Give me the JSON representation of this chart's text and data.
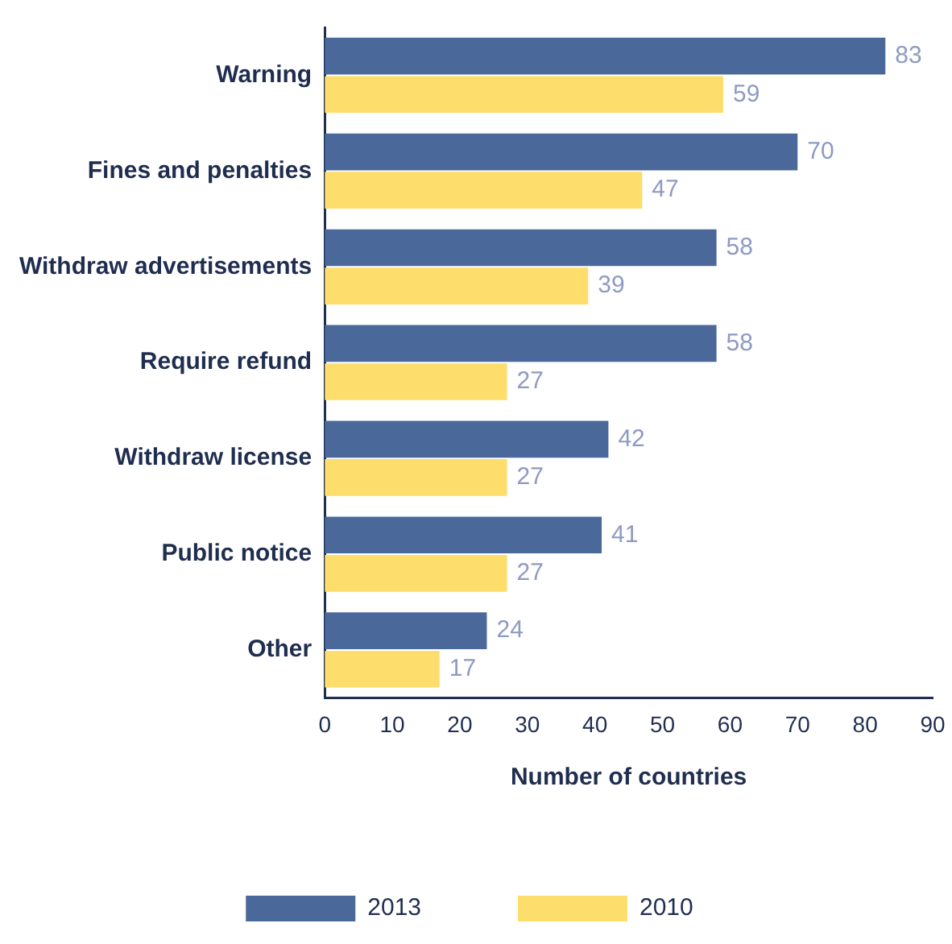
{
  "chart_data": {
    "type": "bar",
    "orientation": "horizontal",
    "xlabel": "Number of countries",
    "categories": [
      "Warning",
      "Fines and penalties",
      "Withdraw advertisements",
      "Require refund",
      "Withdraw license",
      "Public notice",
      "Other"
    ],
    "series": [
      {
        "name": "2013",
        "color": "#4a6899",
        "values": [
          83,
          70,
          58,
          58,
          42,
          41,
          24
        ]
      },
      {
        "name": "2010",
        "color": "#fddd6b",
        "values": [
          59,
          47,
          39,
          27,
          27,
          27,
          17
        ]
      }
    ],
    "xlim": [
      0,
      90
    ],
    "xticks": [
      0,
      10,
      20,
      30,
      40,
      50,
      60,
      70,
      80,
      90
    ],
    "grid": false,
    "legend": "bottom",
    "data_labels": true
  }
}
